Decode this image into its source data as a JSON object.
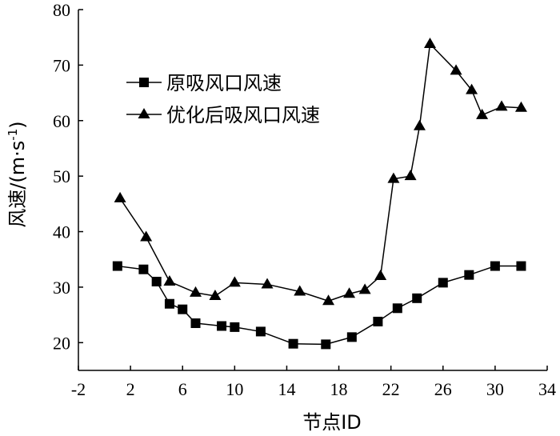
{
  "chart_data": {
    "type": "line",
    "xlabel": "节点ID",
    "ylabel_main": "风速/(m·s",
    "ylabel_sup": "-1",
    "ylabel_end": ")",
    "xlim": [
      -2,
      34
    ],
    "ylim": [
      15,
      80
    ],
    "xticks": [
      -2,
      2,
      6,
      10,
      14,
      18,
      22,
      26,
      30,
      34
    ],
    "yticks": [
      20,
      30,
      40,
      50,
      60,
      70,
      80
    ],
    "grid": false,
    "legend_position": "top-left",
    "series": [
      {
        "name": "原吸风口风速",
        "marker": "square",
        "x": [
          1,
          3,
          4,
          5,
          6,
          7,
          9,
          10,
          12,
          14.5,
          17,
          19,
          21,
          22.5,
          24,
          26,
          28,
          30,
          32
        ],
        "y": [
          33.8,
          33.2,
          31,
          27,
          26,
          23.5,
          23,
          22.8,
          22,
          19.8,
          19.7,
          21,
          23.8,
          26.2,
          28,
          30.8,
          32.2,
          33.8,
          33.8
        ]
      },
      {
        "name": "优化后吸风口风速",
        "marker": "triangle",
        "x": [
          1.2,
          3.2,
          5,
          7,
          8.5,
          10,
          12.5,
          15,
          17.2,
          18.8,
          20,
          21.2,
          22.2,
          23.5,
          24.2,
          25,
          27,
          28.2,
          29,
          30.5,
          32
        ],
        "y": [
          46,
          39,
          31,
          29,
          28.4,
          30.8,
          30.5,
          29.2,
          27.5,
          28.8,
          29.5,
          32,
          49.5,
          50,
          59,
          73.8,
          69,
          65.5,
          61,
          62.5,
          62.3
        ]
      }
    ]
  }
}
